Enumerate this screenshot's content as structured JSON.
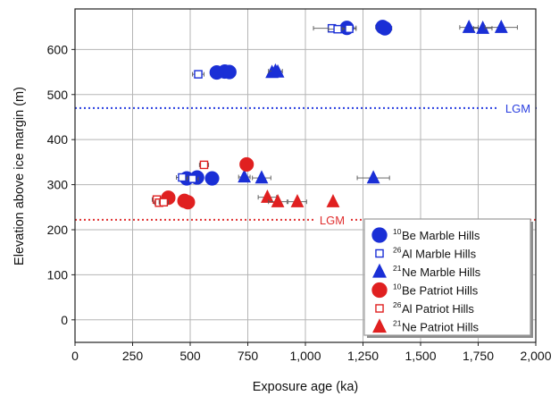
{
  "chart_data": {
    "type": "scatter",
    "xlabel": "Exposure age (ka)",
    "ylabel": "Elevation above ice margin (m)",
    "xlim": [
      0,
      2000
    ],
    "ylim": [
      -50,
      690
    ],
    "grid": true,
    "x_ticks": [
      {
        "v": 0,
        "label": "0"
      },
      {
        "v": 250,
        "label": "250"
      },
      {
        "v": 500,
        "label": "500"
      },
      {
        "v": 750,
        "label": "750"
      },
      {
        "v": 1000,
        "label": "1,000"
      },
      {
        "v": 1250,
        "label": "1,250"
      },
      {
        "v": 1500,
        "label": "1,500"
      },
      {
        "v": 1750,
        "label": "1,750"
      },
      {
        "v": 2000,
        "label": "2,000"
      }
    ],
    "y_ticks": [
      {
        "v": 0,
        "label": "0"
      },
      {
        "v": 100,
        "label": "100"
      },
      {
        "v": 200,
        "label": "200"
      },
      {
        "v": 300,
        "label": "300"
      },
      {
        "v": 400,
        "label": "400"
      },
      {
        "v": 500,
        "label": "500"
      },
      {
        "v": 600,
        "label": "600"
      }
    ],
    "reference_lines": [
      {
        "label": "LGM",
        "y": 470,
        "color": "#2a3fe0"
      },
      {
        "label": "LGM",
        "y": 222,
        "color": "#e03030"
      }
    ],
    "legend_position": "bottom-right",
    "series": [
      {
        "isotope": "10",
        "label": "Be Marble Hills",
        "marker": "circle",
        "filled": true,
        "color": "#1a2fd6",
        "points": [
          {
            "x": 1180,
            "y": 648,
            "xerr": 40
          },
          {
            "x": 1335,
            "y": 650,
            "xerr": 30
          },
          {
            "x": 1345,
            "y": 647,
            "xerr": 30
          },
          {
            "x": 615,
            "y": 549,
            "xerr": 0
          },
          {
            "x": 650,
            "y": 551,
            "xerr": 0
          },
          {
            "x": 670,
            "y": 550,
            "xerr": 0
          },
          {
            "x": 485,
            "y": 314,
            "xerr": 15
          },
          {
            "x": 530,
            "y": 316,
            "xerr": 15
          },
          {
            "x": 595,
            "y": 314,
            "xerr": 0
          }
        ]
      },
      {
        "isotope": "26",
        "label": "Al Marble Hills",
        "marker": "square",
        "filled": false,
        "color": "#1a2fd6",
        "points": [
          {
            "x": 1115,
            "y": 647,
            "xerr": 80
          },
          {
            "x": 1140,
            "y": 645,
            "xerr": 40
          },
          {
            "x": 1190,
            "y": 646,
            "xerr": 30
          },
          {
            "x": 535,
            "y": 545,
            "xerr": 25
          },
          {
            "x": 465,
            "y": 316,
            "xerr": 25
          },
          {
            "x": 510,
            "y": 313,
            "xerr": 25
          }
        ]
      },
      {
        "isotope": "21",
        "label": "Ne Marble Hills",
        "marker": "triangle",
        "filled": true,
        "color": "#1a2fd6",
        "points": [
          {
            "x": 1710,
            "y": 649,
            "xerr": 40
          },
          {
            "x": 1770,
            "y": 647,
            "xerr": 40
          },
          {
            "x": 1850,
            "y": 649,
            "xerr": 70
          },
          {
            "x": 855,
            "y": 549,
            "xerr": 0
          },
          {
            "x": 870,
            "y": 552,
            "xerr": 30
          },
          {
            "x": 880,
            "y": 550,
            "xerr": 0
          },
          {
            "x": 735,
            "y": 317,
            "xerr": 25
          },
          {
            "x": 810,
            "y": 315,
            "xerr": 40
          },
          {
            "x": 1295,
            "y": 315,
            "xerr": 70
          }
        ]
      },
      {
        "isotope": "10",
        "label": "Be Patriot Hills",
        "marker": "circle",
        "filled": true,
        "color": "#e02020",
        "points": [
          {
            "x": 745,
            "y": 345,
            "xerr": 0
          },
          {
            "x": 405,
            "y": 271,
            "xerr": 0
          },
          {
            "x": 475,
            "y": 264,
            "xerr": 0
          },
          {
            "x": 490,
            "y": 261,
            "xerr": 0
          }
        ]
      },
      {
        "isotope": "26",
        "label": "Al Patriot Hills",
        "marker": "square",
        "filled": false,
        "color": "#e02020",
        "points": [
          {
            "x": 560,
            "y": 344,
            "xerr": 20
          },
          {
            "x": 355,
            "y": 267,
            "xerr": 20
          },
          {
            "x": 365,
            "y": 260,
            "xerr": 20
          },
          {
            "x": 385,
            "y": 261,
            "xerr": 20
          }
        ]
      },
      {
        "isotope": "21",
        "label": "Ne Patriot Hills",
        "marker": "triangle",
        "filled": true,
        "color": "#e02020",
        "points": [
          {
            "x": 835,
            "y": 272,
            "xerr": 40
          },
          {
            "x": 880,
            "y": 262,
            "xerr": 40
          },
          {
            "x": 965,
            "y": 262,
            "xerr": 40
          },
          {
            "x": 1120,
            "y": 262,
            "xerr": 0
          }
        ]
      }
    ]
  }
}
